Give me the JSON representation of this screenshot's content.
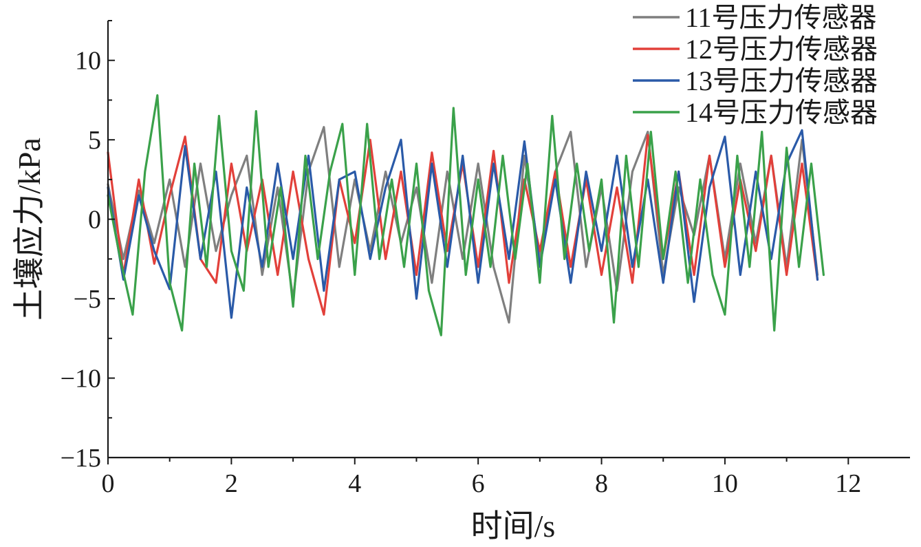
{
  "chart_data": {
    "type": "line",
    "title": "",
    "xlabel": "时间/s",
    "ylabel": "土壤应力/kPa",
    "xlim": [
      0,
      13
    ],
    "ylim": [
      -15,
      12.5
    ],
    "xticks": [
      0,
      2,
      4,
      6,
      8,
      10,
      12
    ],
    "xtick_labels": [
      "0",
      "2",
      "4",
      "6",
      "8",
      "10",
      "12"
    ],
    "yticks": [
      -15,
      -10,
      -5,
      0,
      5,
      10
    ],
    "ytick_labels": [
      "−15",
      "−10",
      "−5",
      "0",
      "5",
      "10"
    ],
    "grid": false,
    "legend": "top-right",
    "series": [
      {
        "name": "11号压力传感器",
        "color": "#7f7f7f",
        "x": [
          0,
          0.25,
          0.5,
          0.75,
          1,
          1.25,
          1.5,
          1.75,
          2,
          2.25,
          2.5,
          2.75,
          3,
          3.25,
          3.5,
          3.75,
          4,
          4.25,
          4.5,
          4.75,
          5,
          5.25,
          5.5,
          5.75,
          6,
          6.25,
          6.5,
          6.75,
          7,
          7.25,
          7.5,
          7.75,
          8,
          8.25,
          8.5,
          8.75,
          9,
          9.25,
          9.5,
          9.75,
          10,
          10.25,
          10.5,
          10.75,
          11,
          11.25,
          11.5
        ],
        "values": [
          2.2,
          -2.5,
          1.8,
          -1.5,
          2.5,
          -3,
          3.5,
          -2,
          1.5,
          4,
          -3.5,
          2,
          -5,
          3,
          5.8,
          -3,
          2.5,
          -2,
          3,
          -1.5,
          2,
          -4,
          3,
          -2.5,
          3.5,
          -3,
          -6.5,
          4,
          -2.5,
          3,
          5.5,
          -3,
          2,
          -4.5,
          3,
          5.5,
          -3.5,
          2,
          -1,
          4,
          -2.5,
          3.5,
          -1.5,
          4,
          -3,
          5,
          -3.5
        ]
      },
      {
        "name": "12号压力传感器",
        "color": "#e2403a",
        "x": [
          0,
          0.25,
          0.5,
          0.75,
          1,
          1.25,
          1.5,
          1.75,
          2,
          2.25,
          2.5,
          2.75,
          3,
          3.25,
          3.5,
          3.75,
          4,
          4.25,
          4.5,
          4.75,
          5,
          5.25,
          5.5,
          5.75,
          6,
          6.25,
          6.5,
          6.75,
          7,
          7.25,
          7.5,
          7.75,
          8,
          8.25,
          8.5,
          8.75,
          9,
          9.25,
          9.5,
          9.75,
          10,
          10.25,
          10.5,
          10.75,
          11,
          11.25,
          11.5
        ],
        "values": [
          4.2,
          -3.5,
          2.5,
          -2.8,
          1.5,
          5.2,
          -2.5,
          -4,
          3.5,
          -2,
          2.5,
          -3.5,
          3,
          -2.5,
          -6,
          2.5,
          -1.5,
          5,
          -2.5,
          3,
          -3.5,
          4.2,
          -2,
          3.5,
          -3,
          4.3,
          -4,
          2.5,
          -2,
          3,
          -3,
          2.5,
          -3.5,
          2,
          -4,
          5.3,
          -2.5,
          3,
          -3.5,
          4,
          -3,
          2.5,
          -2,
          4,
          -3.5,
          3.5,
          -3.8
        ]
      },
      {
        "name": "13号压力传感器",
        "color": "#2a5aa8",
        "x": [
          0,
          0.25,
          0.5,
          0.75,
          1,
          1.25,
          1.5,
          1.75,
          2,
          2.25,
          2.5,
          2.75,
          3,
          3.25,
          3.5,
          3.75,
          4,
          4.25,
          4.5,
          4.75,
          5,
          5.25,
          5.5,
          5.75,
          6,
          6.25,
          6.5,
          6.75,
          7,
          7.25,
          7.5,
          7.75,
          8,
          8.25,
          8.5,
          8.75,
          9,
          9.25,
          9.5,
          9.75,
          10,
          10.25,
          10.5,
          10.75,
          11,
          11.25,
          11.5
        ],
        "values": [
          2,
          -3.8,
          1.5,
          -2,
          -4.4,
          4.6,
          -2.5,
          3,
          -6.2,
          2,
          -3,
          3.5,
          -2.5,
          4,
          -4.5,
          2.5,
          3,
          -2.5,
          2,
          5,
          -5,
          3.5,
          -3,
          4,
          -4,
          3.5,
          -2.5,
          4.9,
          -3,
          2.5,
          -4,
          3,
          -2,
          4,
          -3,
          2.5,
          -4,
          3,
          -5.2,
          2,
          5.2,
          -3.5,
          3,
          -2.5,
          3.5,
          5.6,
          -3.8
        ]
      },
      {
        "name": "14号压力传感器",
        "color": "#3aa14a",
        "x": [
          0,
          0.2,
          0.4,
          0.6,
          0.8,
          1,
          1.2,
          1.4,
          1.6,
          1.8,
          2,
          2.2,
          2.4,
          2.6,
          2.8,
          3,
          3.2,
          3.4,
          3.6,
          3.8,
          4,
          4.2,
          4.4,
          4.6,
          4.8,
          5,
          5.2,
          5.4,
          5.6,
          5.8,
          6,
          6.2,
          6.4,
          6.6,
          6.8,
          7,
          7.2,
          7.4,
          7.6,
          7.8,
          8,
          8.2,
          8.4,
          8.6,
          8.8,
          9,
          9.2,
          9.4,
          9.6,
          9.8,
          10,
          10.2,
          10.4,
          10.6,
          10.8,
          11,
          11.2,
          11.4,
          11.6
        ],
        "values": [
          1.5,
          -2.5,
          -6,
          3,
          7.8,
          -4,
          -7,
          3.5,
          -3,
          6.5,
          -2,
          -4.5,
          6.8,
          -3,
          2,
          -5.5,
          4,
          -2.5,
          3,
          6,
          -3.5,
          6,
          -2.5,
          2.5,
          -3,
          3.5,
          -4.5,
          -7.3,
          7,
          -3.5,
          2.5,
          -3,
          4,
          -2.5,
          3.5,
          -4,
          6.5,
          -2.5,
          3.5,
          -2,
          2.5,
          -6.5,
          4,
          -3,
          5.5,
          -2.5,
          3,
          -4,
          2.5,
          -3.5,
          -6,
          4,
          -3,
          5.5,
          -7,
          4.5,
          -3,
          3.5,
          -3.5
        ]
      }
    ]
  }
}
